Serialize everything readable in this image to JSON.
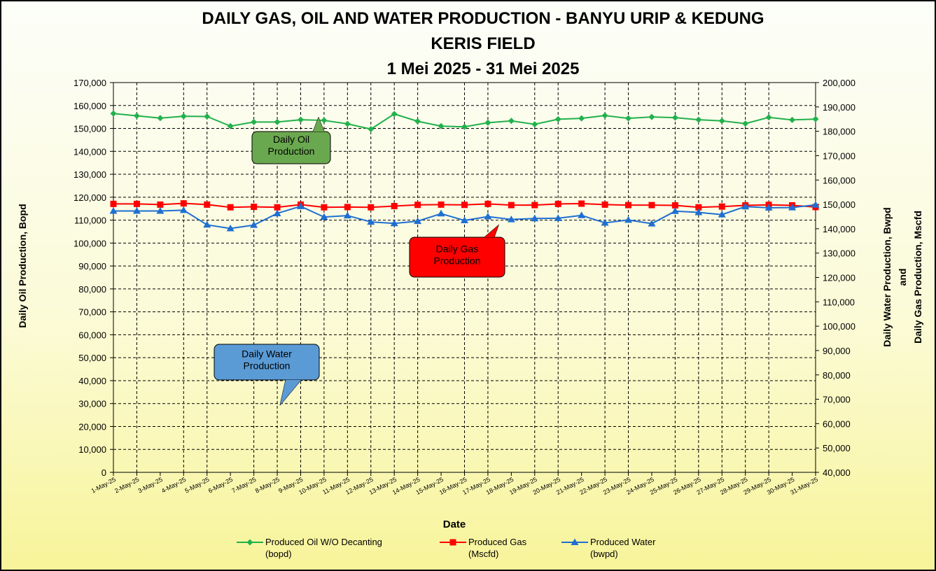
{
  "chart_data": {
    "type": "line",
    "title": [
      "DAILY  GAS, OIL AND WATER PRODUCTION  - BANYU URIP & KEDUNG",
      "KERIS FIELD",
      "1 Mei 2025 - 31 Mei 2025"
    ],
    "xlabel": "Date",
    "ylabel_left": "Daily Oil Production, Bopd",
    "ylabel_right": [
      "Daily Water  Production, Bwpd",
      "and",
      "Daily Gas Production, Mscfd"
    ],
    "ylim_left": [
      0,
      170000
    ],
    "ylim_right": [
      40000,
      200000
    ],
    "yticks_left": [
      "0",
      "10,000",
      "20,000",
      "30,000",
      "40,000",
      "50,000",
      "60,000",
      "70,000",
      "80,000",
      "90,000",
      "100,000",
      "110,000",
      "120,000",
      "130,000",
      "140,000",
      "150,000",
      "160,000",
      "170,000"
    ],
    "yticks_right": [
      "40,000",
      "50,000",
      "60,000",
      "70,000",
      "80,000",
      "90,000",
      "100,000",
      "110,000",
      "120,000",
      "130,000",
      "140,000",
      "150,000",
      "160,000",
      "170,000",
      "180,000",
      "190,000",
      "200,000"
    ],
    "categories": [
      "1-May-25",
      "2-May-25",
      "3-May-25",
      "4-May-25",
      "5-May-25",
      "6-May-25",
      "7-May-25",
      "8-May-25",
      "9-May-25",
      "10-May-25",
      "11-May-25",
      "12-May-25",
      "13-May-25",
      "14-May-25",
      "15-May-25",
      "16-May-25",
      "17-May-25",
      "18-May-25",
      "19-May-25",
      "20-May-25",
      "21-May-25",
      "22-May-25",
      "23-May-25",
      "24-May-25",
      "25-May-25",
      "26-May-25",
      "27-May-25",
      "28-May-25",
      "29-May-25",
      "30-May-25",
      "31-May-25"
    ],
    "series": [
      {
        "name": "Produced Oil W/O Decanting (bopd)",
        "axis": "left",
        "color": "#22b14c",
        "marker": "diamond",
        "values": [
          156500,
          155500,
          154500,
          155300,
          155200,
          151000,
          152800,
          152800,
          153800,
          153500,
          152000,
          149700,
          156300,
          153100,
          151000,
          150700,
          152500,
          153300,
          151800,
          154000,
          154400,
          155600,
          154400,
          155000,
          154700,
          153800,
          153300,
          152100,
          154800,
          153700,
          154100
        ]
      },
      {
        "name": "Produced Gas (Mscfd)",
        "axis": "right",
        "color": "#ff0000",
        "marker": "square",
        "values": [
          150200,
          150200,
          149900,
          150400,
          149900,
          148800,
          149000,
          148800,
          149900,
          148800,
          148900,
          148800,
          149300,
          149800,
          149900,
          149800,
          150200,
          149700,
          149700,
          150200,
          150300,
          149900,
          149700,
          149700,
          149600,
          148800,
          149100,
          149600,
          149800,
          149600,
          148900
        ]
      },
      {
        "name": "Produced Water (bwpd)",
        "axis": "right",
        "color": "#1f6fd1",
        "marker": "triangle",
        "values": [
          147300,
          147300,
          147300,
          147600,
          141600,
          140100,
          141500,
          146300,
          149200,
          144800,
          145400,
          142800,
          142200,
          143100,
          146200,
          143400,
          145000,
          143800,
          144200,
          144300,
          145500,
          142400,
          143600,
          142100,
          147200,
          146700,
          145800,
          149100,
          148600,
          148700,
          149800
        ]
      }
    ],
    "legend_position": "bottom",
    "grid": true,
    "vertical_gridlines_at": [
      "1-May-25",
      "2-May-25",
      "4-May-25",
      "5-May-25",
      "7-May-25",
      "8-May-25",
      "9-May-25",
      "10-May-25",
      "11-May-25",
      "12-May-25",
      "13-May-25",
      "14-May-25",
      "16-May-25",
      "17-May-25",
      "19-May-25",
      "20-May-25",
      "22-May-25",
      "23-May-25",
      "25-May-25",
      "26-May-25",
      "27-May-25",
      "28-May-25",
      "29-May-25"
    ],
    "callouts": [
      {
        "text": [
          "Daily Oil",
          "Production"
        ],
        "color": "#6aa84f"
      },
      {
        "text": [
          "Daily Gas",
          "Production"
        ],
        "color": "#ff0000"
      },
      {
        "text": [
          "Daily Water",
          "Production"
        ],
        "color": "#5b9bd5"
      }
    ]
  }
}
